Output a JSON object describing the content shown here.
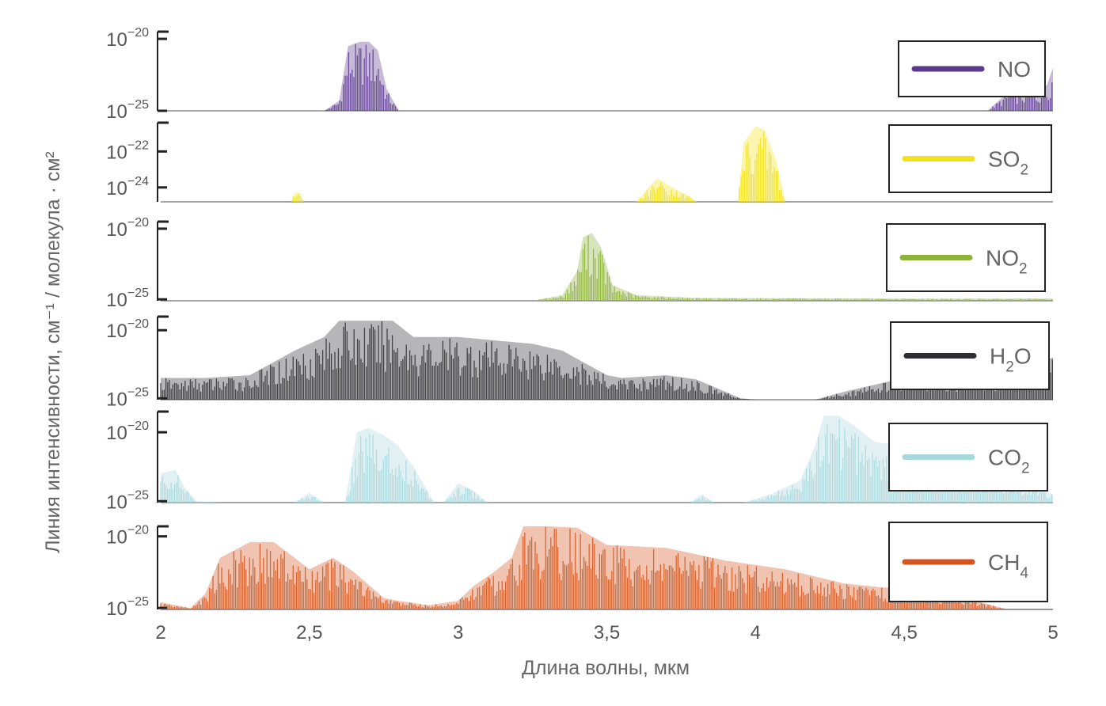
{
  "chart_data": {
    "type": "area",
    "xlabel": "Длина волны, мкм",
    "ylabel": "Линия интенсивности, см⁻¹ / молекула · см²",
    "xlim": [
      2,
      5
    ],
    "x_ticks": [
      {
        "value": 2,
        "label": "2"
      },
      {
        "value": 2.5,
        "label": "2,5"
      },
      {
        "value": 3,
        "label": "3"
      },
      {
        "value": 3.5,
        "label": "3,5"
      },
      {
        "value": 4,
        "label": "4"
      },
      {
        "value": 4.5,
        "label": "4,5"
      },
      {
        "value": 5,
        "label": "5"
      }
    ],
    "y_scale": "log",
    "legend_position": "right",
    "panels": [
      {
        "id": "no",
        "name": "NO",
        "name_base": "NO",
        "name_sub": "",
        "color": "#5B3A8E",
        "ylim_exp": [
          -25,
          -19.5
        ],
        "y_ticks": [
          {
            "exp": -20,
            "label": "10",
            "sup": "−20"
          },
          {
            "exp": -25,
            "label": "10",
            "sup": "−25"
          }
        ],
        "bands": [
          {
            "x": [
              2.55,
              2.6,
              2.63,
              2.67,
              2.7,
              2.73,
              2.76,
              2.8
            ],
            "y": [
              -25,
              -24.3,
              -20.5,
              -20.2,
              -20.2,
              -20.8,
              -23.5,
              -25
            ]
          },
          {
            "x": [
              4.78,
              4.85,
              4.95,
              4.98,
              5.0
            ],
            "y": [
              -25,
              -23.7,
              -23.7,
              -23.2,
              -22
            ]
          }
        ]
      },
      {
        "id": "so2",
        "name": "SO2",
        "name_base": "SO",
        "name_sub": "2",
        "color": "#F2E21B",
        "ylim_exp": [
          -24.8,
          -20.4
        ],
        "y_ticks": [
          {
            "exp": -22,
            "label": "10",
            "sup": "−22"
          },
          {
            "exp": -24,
            "label": "10",
            "sup": "−24"
          }
        ],
        "bands": [
          {
            "x": [
              2.44,
              2.45,
              2.47,
              2.48
            ],
            "y": [
              -24.8,
              -24.3,
              -24.3,
              -24.8
            ]
          },
          {
            "x": [
              3.6,
              3.64,
              3.67,
              3.72,
              3.78,
              3.8
            ],
            "y": [
              -24.8,
              -24,
              -23.5,
              -24,
              -24.5,
              -24.8
            ]
          },
          {
            "x": [
              3.94,
              3.96,
              4.0,
              4.03,
              4.07,
              4.1
            ],
            "y": [
              -24.8,
              -21.5,
              -20.6,
              -20.8,
              -22.5,
              -24.8
            ]
          }
        ]
      },
      {
        "id": "no2",
        "name": "NO2",
        "name_base": "NO",
        "name_sub": "2",
        "color": "#8DB33A",
        "ylim_exp": [
          -25.1,
          -19.5
        ],
        "y_ticks": [
          {
            "exp": -20,
            "label": "10",
            "sup": "−20"
          },
          {
            "exp": -25,
            "label": "10",
            "sup": "−25"
          }
        ],
        "bands": [
          {
            "x": [
              3.25,
              3.35,
              3.4,
              3.42,
              3.45,
              3.48,
              3.52,
              3.6,
              3.7,
              3.8,
              4.5,
              5.0
            ],
            "y": [
              -25.1,
              -24.7,
              -23,
              -20.6,
              -20.3,
              -21.3,
              -24,
              -24.7,
              -24.8,
              -24.9,
              -24.95,
              -24.95
            ]
          }
        ]
      },
      {
        "id": "h2o",
        "name": "H2O",
        "name_base": "H",
        "name_sub": "2",
        "name_tail": "O",
        "color": "#2E2E33",
        "ylim_exp": [
          -25.1,
          -19
        ]
      },
      {
        "id": "co2",
        "name": "CO2",
        "name_base": "CO",
        "name_sub": "2",
        "color": "#A8D8DC",
        "ylim_exp": [
          -25.1,
          -18.5
        ],
        "y_ticks": [
          {
            "exp": -20,
            "label": "10",
            "sup": "−20"
          },
          {
            "exp": -25,
            "label": "10",
            "sup": "−25"
          }
        ]
      },
      {
        "id": "ch4",
        "name": "CH4",
        "name_base": "CH",
        "name_sub": "4",
        "color": "#D4561E",
        "ylim_exp": [
          -25.1,
          -19.3
        ],
        "y_ticks": [
          {
            "exp": -20,
            "label": "10",
            "sup": "−20"
          },
          {
            "exp": -25,
            "label": "10",
            "sup": "−25"
          }
        ]
      }
    ],
    "h2o_bands": [
      {
        "x": [
          2.0,
          2.15,
          2.3,
          2.45,
          2.55,
          2.6,
          2.7,
          2.78,
          2.85,
          3.0,
          3.1,
          3.25,
          3.35,
          3.5,
          3.55,
          3.7,
          3.8,
          3.95,
          4.0,
          4.2,
          4.3,
          4.5,
          4.8,
          5.0
        ],
        "y": [
          -23.5,
          -23.5,
          -23.3,
          -21.5,
          -20.5,
          -19.3,
          -19.3,
          -19.3,
          -20.5,
          -20.5,
          -20.7,
          -21,
          -21.5,
          -23.3,
          -23.5,
          -23.3,
          -23.6,
          -25,
          -25.1,
          -25.1,
          -24.5,
          -23.5,
          -23.5,
          -22
        ]
      }
    ],
    "h2o_ticks": [
      {
        "exp": -20,
        "label": "10",
        "sup": "−20"
      },
      {
        "exp": -25,
        "label": "10",
        "sup": "−25"
      }
    ],
    "co2_bands": [
      {
        "x": [
          2.0,
          2.05,
          2.08,
          2.12,
          2.2
        ],
        "y": [
          -23,
          -22.7,
          -24,
          -25,
          -25.1
        ]
      },
      {
        "x": [
          2.45,
          2.5,
          2.55
        ],
        "y": [
          -25.1,
          -24.4,
          -25.1
        ]
      },
      {
        "x": [
          2.62,
          2.66,
          2.7,
          2.75,
          2.8,
          2.85,
          2.92
        ],
        "y": [
          -25.1,
          -20,
          -19.7,
          -20.2,
          -21,
          -22.5,
          -25.1
        ]
      },
      {
        "x": [
          2.95,
          3.0,
          3.05,
          3.1
        ],
        "y": [
          -25.1,
          -23.7,
          -24.2,
          -25.1
        ]
      },
      {
        "x": [
          3.78,
          3.82,
          3.86
        ],
        "y": [
          -25.1,
          -24.5,
          -25.1
        ]
      },
      {
        "x": [
          3.96,
          4.05,
          4.15,
          4.2,
          4.23,
          4.28,
          4.33,
          4.4,
          4.5,
          4.7,
          4.85,
          5.0
        ],
        "y": [
          -25.1,
          -24.5,
          -23.5,
          -21,
          -18.8,
          -18.8,
          -19.5,
          -20.7,
          -21,
          -22.5,
          -23.5,
          -24.5
        ]
      }
    ],
    "ch4_bands": [
      {
        "x": [
          2.0,
          2.1,
          2.15,
          2.2,
          2.3,
          2.38,
          2.45,
          2.5,
          2.58,
          2.65,
          2.75,
          2.8,
          2.9,
          3.0,
          3.05,
          3.12,
          3.18,
          3.22,
          3.3,
          3.4,
          3.5,
          3.7,
          3.9,
          4.1,
          4.3,
          4.5,
          4.7,
          4.85
        ],
        "y": [
          -24.6,
          -25,
          -24,
          -21.5,
          -20.4,
          -20.4,
          -21.5,
          -22.3,
          -21.5,
          -22.5,
          -24.3,
          -24.5,
          -24.8,
          -24.5,
          -23.5,
          -22.5,
          -21.5,
          -19.3,
          -19.3,
          -19.4,
          -20.6,
          -20.8,
          -21.7,
          -22.3,
          -23.3,
          -23.7,
          -24.3,
          -25.1
        ]
      }
    ]
  }
}
